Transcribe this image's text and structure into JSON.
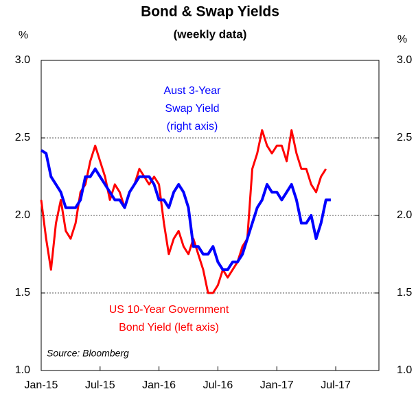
{
  "chart_data": {
    "type": "line",
    "title": "Bond & Swap Yields",
    "subtitle": "(weekly data)",
    "y_unit": "%",
    "y2_unit": "%",
    "source": "Source: Bloomberg",
    "annotations": [
      {
        "lines": [
          "Aust 3-Year",
          "Swap Yield",
          "(right axis)"
        ],
        "color": "#0000ff"
      },
      {
        "lines": [
          "US 10-Year Government",
          "Bond Yield (left axis)"
        ],
        "color": "#ff0000"
      }
    ],
    "xlim": [
      0,
      34.4
    ],
    "xticks": [
      {
        "value": 0,
        "label": "Jan-15"
      },
      {
        "value": 6,
        "label": "Jul-15"
      },
      {
        "value": 12,
        "label": "Jan-16"
      },
      {
        "value": 18,
        "label": "Jul-16"
      },
      {
        "value": 24,
        "label": "Jan-17"
      },
      {
        "value": 30,
        "label": "Jul-17"
      }
    ],
    "ylim": [
      1,
      3
    ],
    "yticks": [
      {
        "value": 1,
        "label": "1.0"
      },
      1.5,
      {
        "value": 2,
        "label": "2.0"
      },
      2.5,
      {
        "value": 3,
        "label": "3.0"
      }
    ],
    "y2lim": [
      1,
      3
    ],
    "y2ticks": [
      {
        "value": 1,
        "label": "1.0"
      },
      1.5,
      {
        "value": 2,
        "label": "2.0"
      },
      2.5,
      {
        "value": 3,
        "label": "3.0"
      }
    ],
    "grid": true,
    "series": [
      {
        "name": "US 10-Year Government Bond Yield",
        "color": "#ff0000",
        "x": [
          0,
          0.5,
          1,
          1.5,
          2,
          2.5,
          3,
          3.5,
          4,
          4.5,
          5,
          5.5,
          6,
          6.5,
          7,
          7.5,
          8,
          8.5,
          9,
          9.5,
          10,
          10.5,
          11,
          11.5,
          12,
          12.5,
          13,
          13.5,
          14,
          14.5,
          15,
          15.5,
          16,
          16.5,
          17,
          17.5,
          18,
          18.5,
          19,
          19.5,
          20,
          20.5,
          21,
          21.5,
          22,
          22.5,
          23,
          23.5,
          24,
          24.5,
          25,
          25.5,
          26,
          26.5,
          27,
          27.5,
          28,
          28.5,
          29
        ],
        "values": [
          2.1,
          1.85,
          1.65,
          1.95,
          2.1,
          1.9,
          1.85,
          1.95,
          2.15,
          2.2,
          2.35,
          2.45,
          2.35,
          2.25,
          2.1,
          2.2,
          2.15,
          2.05,
          2.15,
          2.2,
          2.3,
          2.25,
          2.2,
          2.25,
          2.2,
          1.95,
          1.75,
          1.85,
          1.9,
          1.8,
          1.75,
          1.85,
          1.75,
          1.65,
          1.5,
          1.5,
          1.55,
          1.65,
          1.6,
          1.65,
          1.7,
          1.8,
          1.85,
          2.3,
          2.4,
          2.55,
          2.45,
          2.4,
          2.45,
          2.45,
          2.35,
          2.55,
          2.4,
          2.3,
          2.3,
          2.2,
          2.15,
          2.25,
          2.3
        ]
      },
      {
        "name": "Aust 3-Year Swap Yield",
        "color": "#0000ff",
        "axis": "y2",
        "x": [
          0,
          0.5,
          1,
          1.5,
          2,
          2.5,
          3,
          3.5,
          4,
          4.5,
          5,
          5.5,
          6,
          6.5,
          7,
          7.5,
          8,
          8.5,
          9,
          9.5,
          10,
          10.5,
          11,
          11.5,
          12,
          12.5,
          13,
          13.5,
          14,
          14.5,
          15,
          15.5,
          16,
          16.5,
          17,
          17.5,
          18,
          18.5,
          19,
          19.5,
          20,
          20.5,
          21,
          21.5,
          22,
          22.5,
          23,
          23.5,
          24,
          24.5,
          25,
          25.5,
          26,
          26.5,
          27,
          27.5,
          28,
          28.5,
          29,
          29.5
        ],
        "values": [
          2.42,
          2.4,
          2.25,
          2.2,
          2.15,
          2.05,
          2.05,
          2.05,
          2.1,
          2.25,
          2.25,
          2.3,
          2.25,
          2.2,
          2.15,
          2.1,
          2.1,
          2.05,
          2.15,
          2.2,
          2.25,
          2.25,
          2.25,
          2.2,
          2.1,
          2.1,
          2.05,
          2.15,
          2.2,
          2.15,
          2.05,
          1.8,
          1.8,
          1.75,
          1.75,
          1.8,
          1.7,
          1.65,
          1.65,
          1.7,
          1.7,
          1.75,
          1.85,
          1.95,
          2.05,
          2.1,
          2.2,
          2.15,
          2.15,
          2.1,
          2.15,
          2.2,
          2.1,
          1.95,
          1.95,
          2.0,
          1.85,
          1.95,
          2.1,
          2.1
        ]
      }
    ]
  }
}
